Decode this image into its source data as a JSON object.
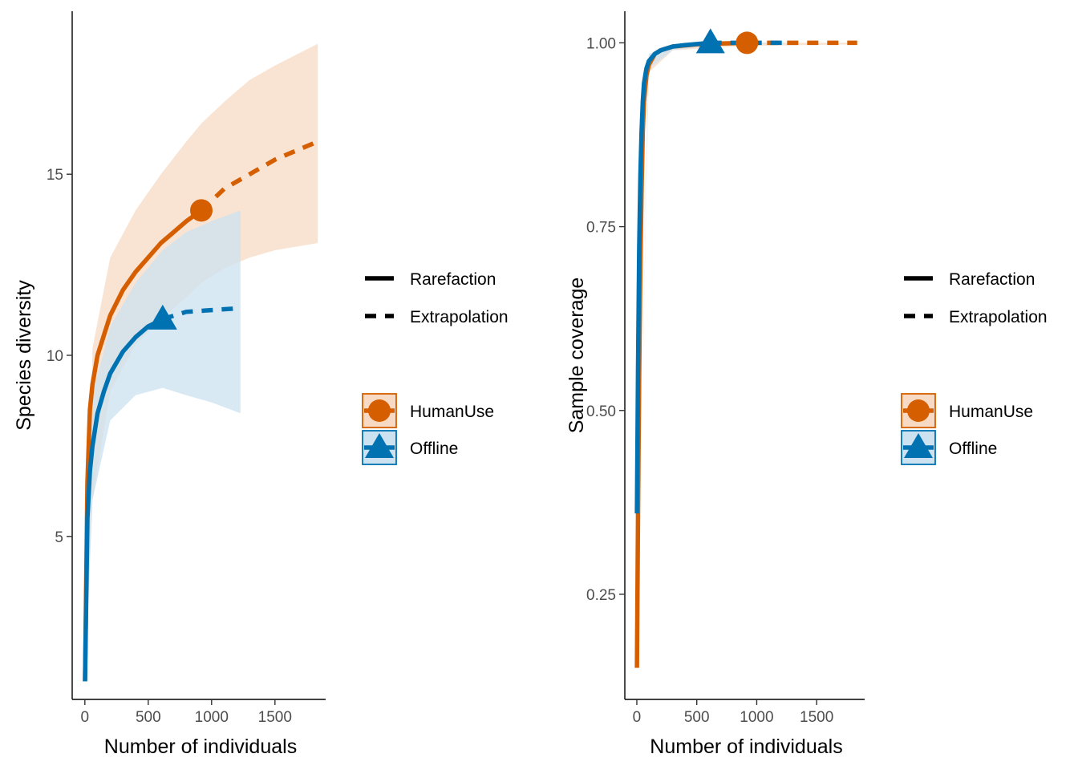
{
  "colors": {
    "HumanUse": "#D55E00",
    "Offline": "#0072B2",
    "HumanUse_fill": "#F7D9C4",
    "Offline_fill": "#CCE2F0",
    "overlap_fill": "#C9C9C9",
    "axis": "#000000",
    "tick_label": "#4D4D4D"
  },
  "legend": {
    "linetype": [
      {
        "label": "Rarefaction",
        "style": "solid"
      },
      {
        "label": "Extrapolation",
        "style": "dashed"
      }
    ],
    "groups": [
      {
        "label": "HumanUse",
        "shape": "circle",
        "color": "#D55E00"
      },
      {
        "label": "Offline",
        "shape": "triangle",
        "color": "#0072B2"
      }
    ]
  },
  "chart_data": [
    {
      "type": "line",
      "xlabel": "Number of individuals",
      "ylabel": "Species diversity",
      "xlim": [
        -100,
        1900
      ],
      "ylim": [
        0.5,
        19.5
      ],
      "xticks": [
        0,
        500,
        1000,
        1500
      ],
      "yticks": [
        5,
        10,
        15
      ],
      "grid": false,
      "legend_position": "right",
      "series": [
        {
          "name": "HumanUse",
          "rarefaction": {
            "x": [
              1,
              20,
              40,
              60,
              100,
              200,
              300,
              400,
              500,
              600,
              700,
              800,
              919
            ],
            "y": [
              1.0,
              6.5,
              8.5,
              9.2,
              10.0,
              11.1,
              11.8,
              12.3,
              12.7,
              13.1,
              13.4,
              13.7,
              14.0
            ]
          },
          "extrapolation": {
            "x": [
              919,
              1100,
              1300,
              1500,
              1700,
              1838
            ],
            "y": [
              14.0,
              14.6,
              15.0,
              15.4,
              15.7,
              15.9
            ]
          },
          "ci_x": [
            1,
            60,
            200,
            400,
            600,
            800,
            919,
            1100,
            1300,
            1500,
            1838
          ],
          "ci_lower": [
            1.0,
            6.0,
            9.0,
            10.3,
            11.0,
            11.6,
            12.0,
            12.4,
            12.7,
            12.9,
            13.1
          ],
          "ci_upper": [
            1.0,
            10.2,
            12.7,
            14.0,
            15.0,
            15.9,
            16.4,
            17.0,
            17.6,
            18.0,
            18.6
          ],
          "observed": {
            "x": 919,
            "y": 14.0
          }
        },
        {
          "name": "Offline",
          "rarefaction": {
            "x": [
              1,
              20,
              40,
              60,
              100,
              150,
              200,
              300,
              400,
              500,
              614
            ],
            "y": [
              1.0,
              5.5,
              6.8,
              7.5,
              8.4,
              9.0,
              9.5,
              10.1,
              10.5,
              10.8,
              11.0
            ]
          },
          "extrapolation": {
            "x": [
              614,
              800,
              1000,
              1228
            ],
            "y": [
              11.0,
              11.2,
              11.25,
              11.3
            ]
          },
          "ci_x": [
            1,
            60,
            200,
            400,
            614,
            800,
            1000,
            1228
          ],
          "ci_lower": [
            1.0,
            6.0,
            8.2,
            8.9,
            9.1,
            8.9,
            8.7,
            8.4
          ],
          "ci_upper": [
            1.0,
            8.9,
            10.8,
            12.0,
            12.9,
            13.4,
            13.7,
            14.0
          ],
          "observed": {
            "x": 614,
            "y": 11.0
          }
        }
      ]
    },
    {
      "type": "line",
      "xlabel": "Number of individuals",
      "ylabel": "Sample coverage",
      "xlim": [
        -100,
        1900
      ],
      "ylim": [
        0.107,
        1.043
      ],
      "xticks": [
        0,
        500,
        1000,
        1500
      ],
      "yticks": [
        0.25,
        0.5,
        0.75,
        1.0
      ],
      "ytick_labels": [
        "0.25",
        "0.50",
        "0.75",
        "1.00"
      ],
      "grid": false,
      "legend_position": "right",
      "series": [
        {
          "name": "HumanUse",
          "rarefaction": {
            "x": [
              1,
              10,
              20,
              30,
              40,
              50,
              60,
              80,
              100,
              150,
              200,
              300,
              500,
              700,
              919
            ],
            "y": [
              0.15,
              0.35,
              0.55,
              0.7,
              0.8,
              0.88,
              0.92,
              0.955,
              0.97,
              0.985,
              0.99,
              0.995,
              0.998,
              0.999,
              1.0
            ]
          },
          "extrapolation": {
            "x": [
              919,
              1200,
              1500,
              1838
            ],
            "y": [
              1.0,
              1.0,
              1.0,
              1.0
            ]
          },
          "ci_x": [
            1,
            100,
            300,
            919,
            1838
          ],
          "ci_lower": [
            0.15,
            0.96,
            0.99,
            0.996,
            0.998
          ],
          "ci_upper": [
            0.15,
            0.98,
            0.998,
            1.0,
            1.0
          ],
          "observed": {
            "x": 919,
            "y": 1.0
          }
        },
        {
          "name": "Offline",
          "rarefaction": {
            "x": [
              1,
              10,
              20,
              30,
              40,
              50,
              60,
              80,
              100,
              150,
              200,
              300,
              400,
              614
            ],
            "y": [
              0.36,
              0.55,
              0.72,
              0.82,
              0.88,
              0.92,
              0.945,
              0.965,
              0.975,
              0.985,
              0.99,
              0.995,
              0.997,
              1.0
            ]
          },
          "extrapolation": {
            "x": [
              614,
              800,
              1000,
              1228
            ],
            "y": [
              1.0,
              1.0,
              1.0,
              1.0
            ]
          },
          "ci_x": [
            1,
            100,
            300,
            614,
            1228
          ],
          "ci_lower": [
            0.36,
            0.965,
            0.99,
            0.997,
            0.999
          ],
          "ci_upper": [
            0.36,
            0.985,
            0.998,
            1.0,
            1.0
          ],
          "observed": {
            "x": 614,
            "y": 1.0
          }
        }
      ]
    }
  ]
}
